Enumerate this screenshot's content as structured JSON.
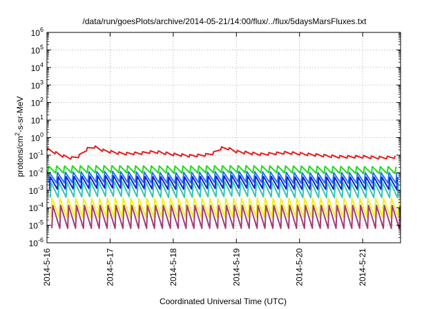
{
  "chart_data": {
    "type": "line",
    "title": "/data/run/goesPlots/archive/2014-05-21/14:00/flux/../flux/5daysMarsFluxes.txt",
    "xlabel": "Coordinated Universal Time (UTC)",
    "ylabel_prefix": "protons/cm",
    "ylabel_sup": "2",
    "ylabel_suffix": "-s-sr-MeV",
    "yscale": "log",
    "ylim": [
      1e-06,
      1000000.0
    ],
    "xlim": [
      0,
      5.6
    ],
    "grid": true,
    "x_ticks": [
      {
        "x": 0,
        "label": "2014-5-16"
      },
      {
        "x": 1,
        "label": "2014-5-17"
      },
      {
        "x": 2,
        "label": "2014-5-18"
      },
      {
        "x": 3,
        "label": "2014-5-19"
      },
      {
        "x": 4,
        "label": "2014-5-20"
      },
      {
        "x": 5,
        "label": "2014-5-21"
      }
    ],
    "y_ticks": [
      {
        "exp": -6,
        "base": "10",
        "sup": "-6"
      },
      {
        "exp": -5,
        "base": "10",
        "sup": "-5"
      },
      {
        "exp": -4,
        "base": "10",
        "sup": "-4"
      },
      {
        "exp": -3,
        "base": "10",
        "sup": "-3"
      },
      {
        "exp": -2,
        "base": "10",
        "sup": "-2"
      },
      {
        "exp": -1,
        "base": "10",
        "sup": "-1"
      },
      {
        "exp": 0,
        "base": "10",
        "sup": "0"
      },
      {
        "exp": 1,
        "base": "10",
        "sup": "1"
      },
      {
        "exp": 2,
        "base": "10",
        "sup": "2"
      },
      {
        "exp": 3,
        "base": "10",
        "sup": "3"
      },
      {
        "exp": 4,
        "base": "10",
        "sup": "4"
      },
      {
        "exp": 5,
        "base": "10",
        "sup": "5"
      },
      {
        "exp": 6,
        "base": "10",
        "sup": "6"
      }
    ],
    "sawtooth_period_days": 0.125,
    "series": [
      {
        "color": "#e8191a",
        "envelope": [
          [
            0,
            0.22
          ],
          [
            0.25,
            0.09
          ],
          [
            0.45,
            0.06
          ],
          [
            0.7,
            0.35
          ],
          [
            0.9,
            0.18
          ],
          [
            1.2,
            0.12
          ],
          [
            1.5,
            0.13
          ],
          [
            1.7,
            0.16
          ],
          [
            2.0,
            0.11
          ],
          [
            2.3,
            0.09
          ],
          [
            2.6,
            0.11
          ],
          [
            2.8,
            0.3
          ],
          [
            3.0,
            0.16
          ],
          [
            3.4,
            0.11
          ],
          [
            3.8,
            0.14
          ],
          [
            4.0,
            0.12
          ],
          [
            4.3,
            0.1
          ],
          [
            4.6,
            0.08
          ],
          [
            5.0,
            0.08
          ],
          [
            5.3,
            0.07
          ],
          [
            5.6,
            0.08
          ]
        ],
        "amp": 1.4
      },
      {
        "color": "#1bdc1b",
        "envelope": [
          [
            0,
            0.015
          ],
          [
            1,
            0.016
          ],
          [
            2,
            0.015
          ],
          [
            3,
            0.016
          ],
          [
            4,
            0.015
          ],
          [
            5,
            0.014
          ],
          [
            5.6,
            0.014
          ]
        ],
        "amp": 2.5
      },
      {
        "color": "#1c78f0",
        "envelope": [
          [
            0,
            0.005
          ],
          [
            1,
            0.006
          ],
          [
            2,
            0.005
          ],
          [
            3,
            0.006
          ],
          [
            4,
            0.005
          ],
          [
            5,
            0.005
          ],
          [
            5.6,
            0.005
          ]
        ],
        "amp": 4
      },
      {
        "color": "#1a1ad2",
        "envelope": [
          [
            0,
            0.0025
          ],
          [
            1,
            0.003
          ],
          [
            2,
            0.0025
          ],
          [
            3,
            0.003
          ],
          [
            4,
            0.0025
          ],
          [
            5,
            0.0025
          ],
          [
            5.6,
            0.0025
          ]
        ],
        "amp": 5
      },
      {
        "color": "#2fc6b8",
        "envelope": [
          [
            0,
            0.001
          ],
          [
            1,
            0.0012
          ],
          [
            2,
            0.001
          ],
          [
            3,
            0.0012
          ],
          [
            4,
            0.001
          ],
          [
            5,
            0.001
          ],
          [
            5.6,
            0.001
          ]
        ],
        "amp": 7
      },
      {
        "color": "#f2ef1e",
        "envelope": [
          [
            0,
            0.0001
          ],
          [
            1,
            0.0001
          ],
          [
            2,
            0.0001
          ],
          [
            3,
            0.0001
          ],
          [
            4,
            0.0001
          ],
          [
            5,
            0.0001
          ],
          [
            5.6,
            0.0001
          ]
        ],
        "amp": 12
      },
      {
        "color": "#a33a7a",
        "envelope": [
          [
            0,
            3e-05
          ],
          [
            1,
            3e-05
          ],
          [
            2,
            3e-05
          ],
          [
            3,
            3e-05
          ],
          [
            4,
            3e-05
          ],
          [
            5,
            3e-05
          ],
          [
            5.6,
            3e-05
          ]
        ],
        "amp": 20
      }
    ]
  }
}
